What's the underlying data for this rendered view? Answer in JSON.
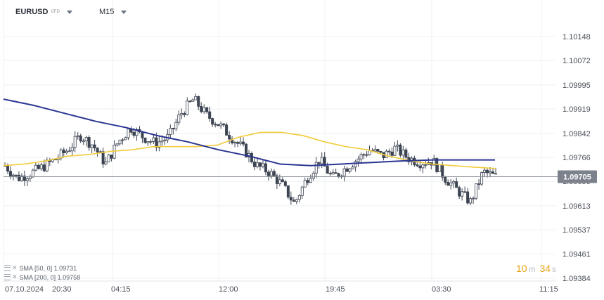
{
  "header": {
    "symbol": "EURUSD",
    "instrument_type": "CFD",
    "timeframe": "M15"
  },
  "indicators": [
    {
      "label": "SMA [50, 0]",
      "value": "1.09731",
      "color": "#f2cc3c"
    },
    {
      "label": "SMA [200, 0]",
      "value": "1.09758",
      "color": "#2a3592"
    }
  ],
  "countdown": {
    "minutes": "10",
    "minutes_unit": "m",
    "seconds": "34",
    "seconds_unit": "s"
  },
  "chart_data": {
    "type": "candlestick",
    "last_price": 1.09705,
    "last_price_label": "1.09705",
    "y_ticks": [
      "1.10148",
      "1.10072",
      "1.09995",
      "1.09919",
      "1.09842",
      "1.09766",
      "1.09690",
      "1.09613",
      "1.09537",
      "1.09461",
      "1.09384"
    ],
    "ylim": [
      1.09384,
      1.10148
    ],
    "x_labels": [
      "07.10.2024",
      "20:30",
      "04:15",
      "12:00",
      "19:45",
      "03:30",
      "11:15"
    ],
    "grid": true,
    "sma50_value": 1.09731,
    "sma200_value": 1.09758,
    "close_path": [
      1.0974,
      1.097,
      1.09715,
      1.09735,
      1.0976,
      1.0979,
      1.09835,
      1.09805,
      1.09745,
      1.09815,
      1.0986,
      1.0983,
      1.0981,
      1.0983,
      1.09905,
      1.0995,
      1.099,
      1.0987,
      1.0983,
      1.0979,
      1.0974,
      1.0972,
      1.0968,
      1.0962,
      1.097,
      1.0976,
      1.097,
      1.0973,
      1.0976,
      1.0979,
      1.0977,
      1.09795,
      1.09765,
      1.0975,
      1.09755,
      1.097,
      1.0966,
      1.09625,
      1.0972,
      1.09705
    ],
    "sma50_path": [
      1.0974,
      1.09745,
      1.09755,
      1.0977,
      1.09775,
      1.09785,
      1.0979,
      1.098,
      1.098,
      1.098,
      1.09805,
      1.0983,
      1.09845,
      1.09845,
      1.09835,
      1.09815,
      1.098,
      1.0979,
      1.0977,
      1.09755,
      1.09745,
      1.0974,
      1.09735,
      1.09731
    ],
    "sma200_path": [
      1.0995,
      1.0993,
      1.09905,
      1.0988,
      1.0986,
      1.09835,
      1.09815,
      1.0979,
      1.0977,
      1.09745,
      1.0974,
      1.09745,
      1.0975,
      1.09755,
      1.09758,
      1.09758,
      1.09758
    ]
  }
}
